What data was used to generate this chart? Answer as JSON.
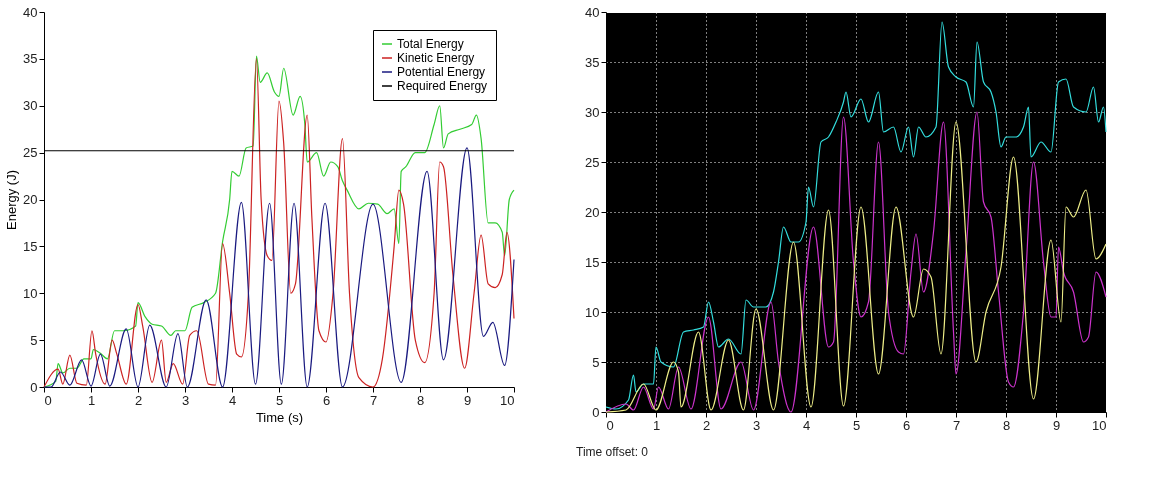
{
  "chart_data": [
    {
      "type": "line",
      "xlabel": "Time (s)",
      "ylabel": "Energy (J)",
      "xlim": [
        0,
        10
      ],
      "xticks": [
        0,
        1,
        2,
        3,
        4,
        5,
        6,
        7,
        8,
        9,
        10
      ],
      "ylim": [
        0,
        40
      ],
      "yticks": [
        0,
        5,
        10,
        15,
        20,
        25,
        30,
        35,
        40
      ],
      "grid": false,
      "legend": "top right",
      "series": [
        {
          "name": "Total Energy",
          "color": "#33cc33",
          "x": [
            0,
            0.25,
            0.3,
            0.4,
            0.55,
            0.7,
            0.85,
            1.0,
            1.05,
            1.2,
            1.35,
            1.5,
            1.7,
            1.95,
            2.0,
            2.15,
            2.3,
            2.5,
            2.7,
            2.8,
            3.0,
            3.15,
            3.4,
            3.65,
            3.8,
            3.95,
            4.0,
            4.15,
            4.3,
            4.45,
            4.52,
            4.6,
            4.75,
            4.9,
            5.0,
            5.1,
            5.3,
            5.45,
            5.55,
            5.6,
            5.8,
            5.95,
            6.1,
            6.25,
            6.35,
            6.45,
            6.7,
            6.9,
            7.1,
            7.3,
            7.45,
            7.55,
            7.6,
            7.7,
            7.9,
            8.1,
            8.3,
            8.42,
            8.5,
            8.6,
            8.85,
            9.1,
            9.2,
            9.3,
            9.45,
            9.6,
            9.75,
            9.8,
            9.9,
            10
          ],
          "values": [
            0,
            0.6,
            2.5,
            1.5,
            2.0,
            2.0,
            3.0,
            3.0,
            4.0,
            3.6,
            3.0,
            6.0,
            6.0,
            6.5,
            9.0,
            7.5,
            6.7,
            6.5,
            5.5,
            6.0,
            6.0,
            8.5,
            9.0,
            10.0,
            15.5,
            20,
            23,
            22.5,
            25.5,
            25.7,
            35.3,
            32.5,
            33.5,
            31.5,
            31,
            34,
            29,
            31,
            28,
            24,
            25,
            22.5,
            24,
            23.5,
            22,
            21,
            19,
            19.6,
            19.5,
            18.5,
            19,
            15.3,
            23,
            23.5,
            25,
            25,
            28,
            30,
            25.5,
            27,
            27.5,
            28,
            29,
            26.5,
            17.5,
            17.5,
            16.5,
            14,
            20,
            21
          ]
        },
        {
          "name": "Kinetic Energy",
          "color": "#cc2222",
          "x": [
            0,
            0.3,
            0.4,
            0.55,
            0.7,
            0.9,
            1.02,
            1.1,
            1.3,
            1.45,
            1.55,
            1.75,
            2.0,
            2.1,
            2.3,
            2.5,
            2.6,
            2.75,
            2.95,
            3.1,
            3.25,
            3.5,
            3.65,
            3.8,
            3.95,
            4.1,
            4.2,
            4.35,
            4.52,
            4.62,
            4.75,
            4.85,
            5.0,
            5.1,
            5.25,
            5.35,
            5.6,
            5.7,
            5.85,
            6.0,
            6.15,
            6.35,
            6.5,
            6.7,
            7.0,
            7.2,
            7.45,
            7.55,
            7.65,
            7.9,
            8.1,
            8.3,
            8.42,
            8.5,
            8.7,
            8.95,
            9.15,
            9.3,
            9.45,
            9.6,
            9.75,
            9.85,
            10
          ],
          "values": [
            0,
            1.9,
            0.3,
            3.4,
            0.4,
            0.2,
            6.0,
            3.5,
            0.3,
            5.0,
            3.5,
            0.3,
            8.8,
            6.5,
            0.5,
            5.0,
            0.5,
            2.5,
            0.3,
            5.5,
            6.0,
            0.3,
            0.2,
            15.3,
            10,
            3.5,
            3.2,
            10,
            35,
            20,
            14,
            13.5,
            30.5,
            26,
            10,
            11,
            29,
            18,
            6,
            4.8,
            10,
            26.5,
            10,
            1,
            0,
            3,
            15,
            21,
            19.5,
            5,
            2.6,
            10,
            24,
            23.5,
            12,
            2,
            10,
            16.2,
            11,
            10.6,
            12,
            16.5,
            7.3
          ]
        },
        {
          "name": "Potential Energy",
          "color": "#1a1a80",
          "x": [
            0,
            0.15,
            0.35,
            0.55,
            0.8,
            1.0,
            1.2,
            1.4,
            1.75,
            2.0,
            2.25,
            2.6,
            2.85,
            3.05,
            3.45,
            3.8,
            4.2,
            4.5,
            4.8,
            5.05,
            5.32,
            5.6,
            5.98,
            6.35,
            7.0,
            7.6,
            8.15,
            8.5,
            9.0,
            9.35,
            9.55,
            9.8,
            10
          ],
          "values": [
            0,
            0,
            1.6,
            0.2,
            2.9,
            0.1,
            3.5,
            0.1,
            6.2,
            0,
            6.6,
            0,
            5.7,
            0,
            9.3,
            0,
            19.7,
            0.3,
            19.6,
            0.3,
            19.6,
            0,
            19.6,
            0,
            19.5,
            0.5,
            23,
            2.9,
            25.5,
            5.4,
            6.9,
            2.3,
            13.6
          ]
        },
        {
          "name": "Required Energy",
          "color": "#000000",
          "x": [
            0,
            10
          ],
          "values": [
            25.2,
            25.2
          ]
        }
      ]
    },
    {
      "type": "line",
      "xlim": [
        0,
        10
      ],
      "xticks": [
        0,
        1,
        2,
        3,
        4,
        5,
        6,
        7,
        8,
        9,
        10
      ],
      "ylim": [
        0,
        40
      ],
      "yticks": [
        0,
        5,
        10,
        15,
        20,
        25,
        30,
        35,
        40
      ],
      "grid": true,
      "legend": false,
      "annotations": [
        "Time offset:  0"
      ],
      "series": [
        {
          "color": "#33dddd",
          "x": [
            0,
            0.2,
            0.45,
            0.55,
            0.6,
            0.75,
            0.95,
            1.0,
            1.1,
            1.35,
            1.55,
            1.75,
            1.95,
            2.05,
            2.15,
            2.25,
            2.45,
            2.7,
            2.8,
            2.95,
            3.2,
            3.35,
            3.45,
            3.55,
            3.7,
            3.85,
            4.0,
            4.05,
            4.15,
            4.3,
            4.45,
            4.6,
            4.75,
            4.8,
            4.9,
            5.1,
            5.25,
            5.45,
            5.55,
            5.75,
            5.9,
            6.05,
            6.15,
            6.25,
            6.4,
            6.6,
            6.72,
            6.85,
            7.0,
            7.2,
            7.35,
            7.42,
            7.55,
            7.7,
            7.8,
            7.9,
            8.0,
            8.2,
            8.35,
            8.45,
            8.5,
            8.7,
            8.9,
            9.05,
            9.2,
            9.35,
            9.6,
            9.75,
            9.85,
            9.95,
            10
          ],
          "values": [
            0.5,
            0.3,
            1.2,
            3.7,
            2.0,
            2.8,
            2.8,
            6.5,
            5.0,
            4.5,
            8,
            8.2,
            8.5,
            11,
            9,
            6.5,
            7.3,
            5.8,
            11.2,
            10.5,
            10.5,
            12,
            15,
            18.5,
            17,
            17,
            19,
            22.5,
            20.5,
            27,
            27.5,
            29,
            31,
            32,
            29.5,
            31.3,
            29,
            32,
            28,
            28.5,
            26,
            28.5,
            25.5,
            28.5,
            27.5,
            28.5,
            39,
            34.5,
            33.5,
            33,
            30.5,
            37,
            33,
            32,
            30,
            26.5,
            27.5,
            27.5,
            28.5,
            30.5,
            25.5,
            27,
            26,
            33,
            33.3,
            30.5,
            30,
            32.5,
            29,
            30.5,
            28
          ]
        },
        {
          "color": "#cc33cc",
          "x": [
            0,
            0.4,
            0.55,
            0.75,
            0.95,
            1.05,
            1.25,
            1.45,
            1.7,
            2.05,
            2.3,
            2.7,
            2.95,
            3.3,
            3.45,
            3.7,
            4.15,
            4.45,
            4.55,
            4.75,
            4.95,
            5.1,
            5.25,
            5.45,
            5.65,
            5.85,
            5.95,
            6.1,
            6.2,
            6.35,
            6.55,
            6.75,
            6.95,
            7.0,
            7.2,
            7.42,
            7.55,
            7.7,
            7.85,
            8.05,
            8.15,
            8.35,
            8.55,
            8.75,
            8.9,
            9.0,
            9.05,
            9.15,
            9.35,
            9.55,
            9.65,
            9.8,
            10
          ],
          "values": [
            0,
            0.8,
            0.2,
            2.5,
            0.3,
            2.5,
            0.3,
            4.5,
            0.3,
            9.5,
            0.3,
            5,
            0.2,
            11,
            5,
            0,
            18.5,
            6.5,
            7.0,
            29.5,
            15,
            9.5,
            11,
            27,
            10,
            6,
            5.8,
            14,
            17.8,
            12,
            18,
            29,
            8,
            3.8,
            16,
            30,
            21,
            19.5,
            12,
            3.0,
            2.5,
            10,
            25,
            15,
            9.5,
            9.5,
            16.5,
            14,
            12,
            7,
            7.5,
            14,
            11.5
          ]
        },
        {
          "color": "#eeee88",
          "x": [
            0,
            0.4,
            0.75,
            1.0,
            1.35,
            1.45,
            1.5,
            1.85,
            2.1,
            2.45,
            2.75,
            3.0,
            3.35,
            3.75,
            4.1,
            4.45,
            4.75,
            5.1,
            5.45,
            5.8,
            6.15,
            6.35,
            6.5,
            6.7,
            7.0,
            7.4,
            7.6,
            7.9,
            8.15,
            8.55,
            8.9,
            9.1,
            9.2,
            9.35,
            9.6,
            9.8,
            10
          ],
          "values": [
            0,
            0.2,
            2.8,
            0.2,
            5,
            4,
            0.5,
            8,
            0.2,
            7.2,
            0.2,
            10.3,
            0.2,
            17,
            0.5,
            20.2,
            0.6,
            20.5,
            3.8,
            20.5,
            9.5,
            14.3,
            13.5,
            5.8,
            29,
            5.0,
            10,
            14.5,
            25.5,
            1.3,
            17.2,
            9,
            20.5,
            19.5,
            22.2,
            15.3,
            16.8
          ]
        }
      ]
    }
  ]
}
